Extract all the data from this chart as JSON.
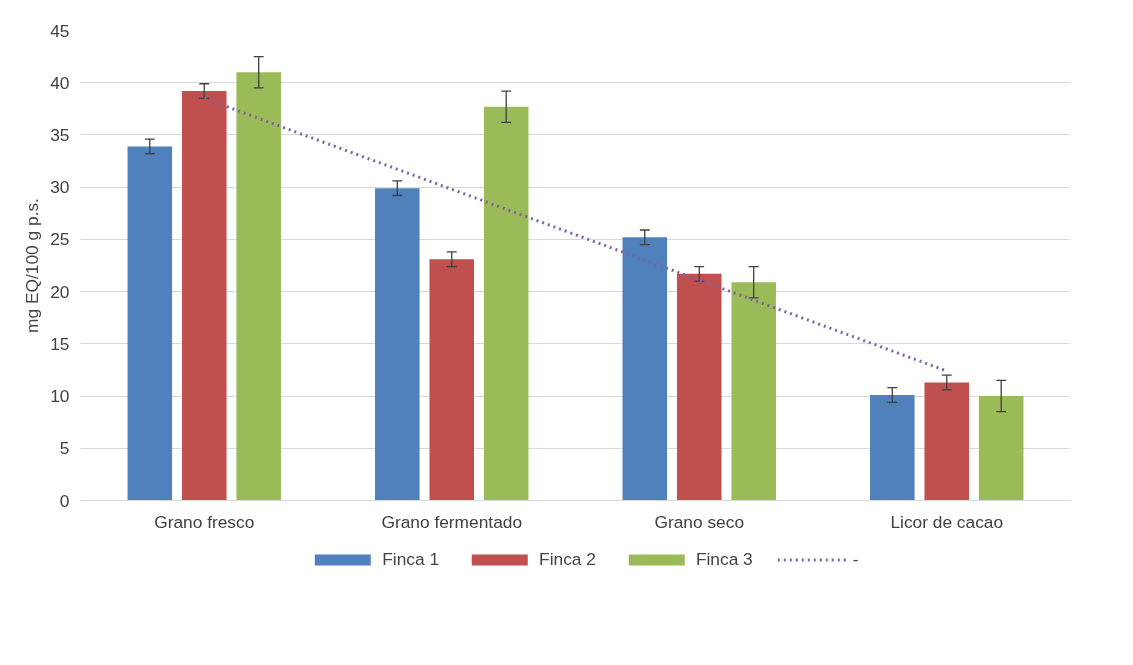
{
  "chart_data": {
    "type": "bar",
    "ylabel": "mg EQ/100 g p.s.",
    "categories": [
      "Grano fresco",
      "Grano fermentado",
      "Grano seco",
      "Licor de cacao"
    ],
    "series": [
      {
        "name": "Finca 1",
        "color": "#4f81bd",
        "values": [
          33.9,
          29.9,
          25.2,
          10.1
        ],
        "errors": [
          0.7,
          0.7,
          0.7,
          0.7
        ]
      },
      {
        "name": "Finca 2",
        "color": "#c0504d",
        "values": [
          39.2,
          23.1,
          21.7,
          11.3
        ],
        "errors": [
          0.7,
          0.7,
          0.7,
          0.7
        ]
      },
      {
        "name": "Finca 3",
        "color": "#9bbb59",
        "values": [
          41.0,
          37.7,
          20.9,
          10.0
        ],
        "errors": [
          1.5,
          1.5,
          1.5,
          1.5
        ]
      },
      {
        "name": "-",
        "type": "line",
        "color": "#8064a2",
        "line_style": "dotted",
        "values": [
          38.5,
          29.8,
          21.1,
          12.4
        ]
      }
    ],
    "ylim": [
      0,
      45
    ],
    "yticks": [
      0,
      5,
      10,
      15,
      20,
      25,
      30,
      35,
      40,
      45
    ],
    "grid": "y",
    "legend": "bottom"
  }
}
